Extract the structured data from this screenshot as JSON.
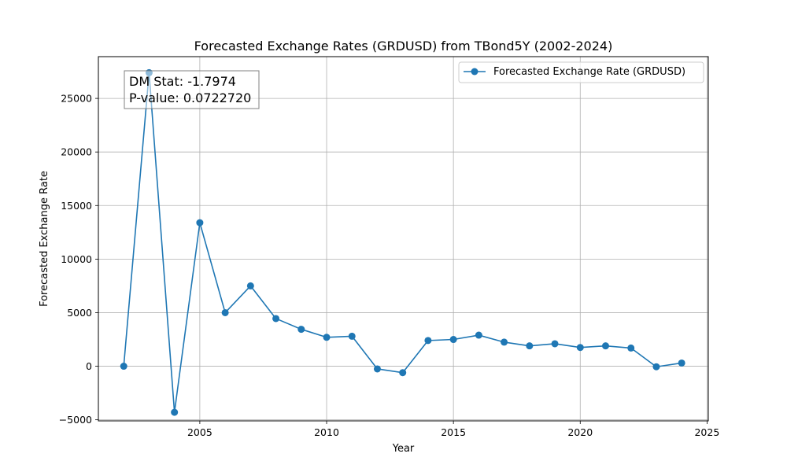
{
  "chart_data": {
    "type": "line",
    "title": "Forecasted Exchange Rates (GRDUSD) from TBond5Y (2002-2024)",
    "xlabel": "Year",
    "ylabel": "Forecasted Exchange Rate",
    "xlim": [
      2001.0,
      2025.05
    ],
    "ylim": [
      -5100,
      28900
    ],
    "xticks": [
      2005,
      2010,
      2015,
      2020,
      2025
    ],
    "yticks": [
      -5000,
      0,
      5000,
      10000,
      15000,
      20000,
      25000
    ],
    "ytick_labels": [
      "−5000",
      "0",
      "5000",
      "10000",
      "15000",
      "20000",
      "25000"
    ],
    "grid": true,
    "legend_position": "top-right",
    "series": [
      {
        "name": "Forecasted Exchange Rate (GRDUSD)",
        "color": "#1f77b4",
        "marker": "circle",
        "x": [
          2002,
          2003,
          2004,
          2005,
          2006,
          2007,
          2008,
          2009,
          2010,
          2011,
          2012,
          2013,
          2014,
          2015,
          2016,
          2017,
          2018,
          2019,
          2020,
          2021,
          2022,
          2023,
          2024
        ],
        "values": [
          0,
          27400,
          -4300,
          13400,
          5000,
          7500,
          4450,
          3450,
          2700,
          2800,
          -250,
          -600,
          2400,
          2500,
          2900,
          2250,
          1900,
          2100,
          1750,
          1900,
          1700,
          -50,
          300
        ]
      }
    ],
    "annotation": {
      "line1": "DM Stat: -1.7974",
      "line2": "P-value: 0.0722720"
    }
  }
}
